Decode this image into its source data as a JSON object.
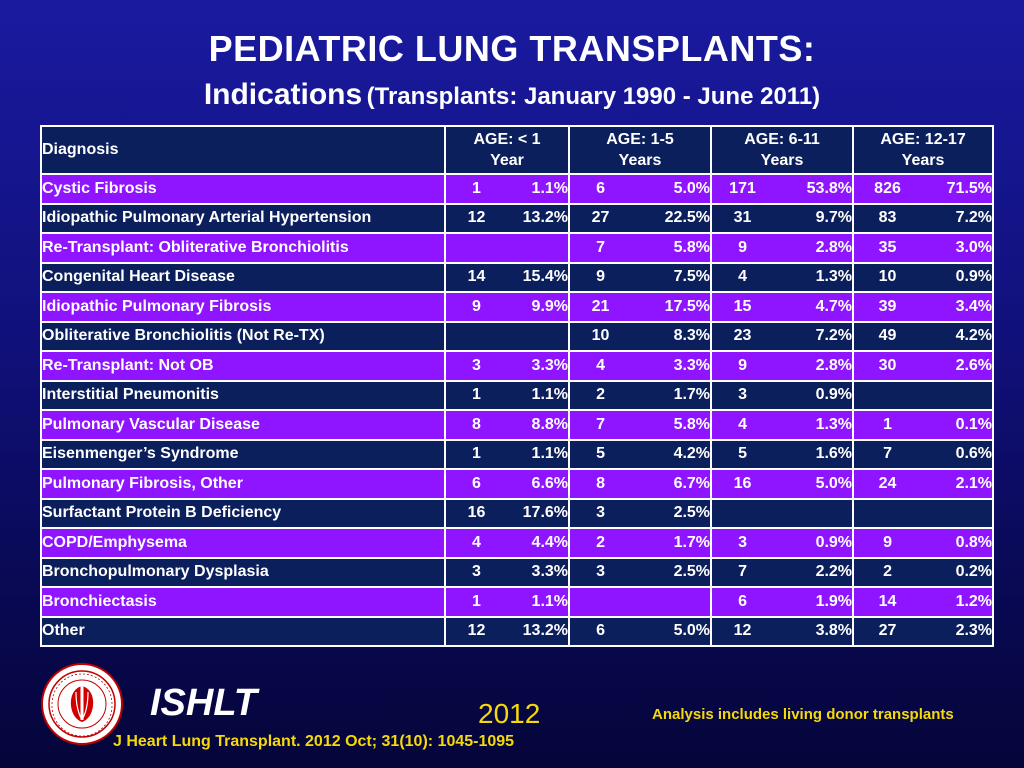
{
  "title": "PEDIATRIC LUNG TRANSPLANTS:",
  "subtitle": "Indications",
  "subtitle_paren": "(Transplants: January 1990 - June 2011)",
  "table": {
    "diagnosis_header": "Diagnosis",
    "age_headers": [
      {
        "line1": "AGE: < 1",
        "line2": "Year"
      },
      {
        "line1": "AGE: 1-5",
        "line2": "Years"
      },
      {
        "line1": "AGE: 6-11",
        "line2": "Years"
      },
      {
        "line1": "AGE: 12-17",
        "line2": "Years"
      }
    ],
    "rows": [
      {
        "diagnosis": "Cystic Fibrosis",
        "cells": [
          [
            "1",
            "1.1%"
          ],
          [
            "6",
            "5.0%"
          ],
          [
            "171",
            "53.8%"
          ],
          [
            "826",
            "71.5%"
          ]
        ]
      },
      {
        "diagnosis": "Idiopathic Pulmonary Arterial Hypertension",
        "cells": [
          [
            "12",
            "13.2%"
          ],
          [
            "27",
            "22.5%"
          ],
          [
            "31",
            "9.7%"
          ],
          [
            "83",
            "7.2%"
          ]
        ]
      },
      {
        "diagnosis": "Re-Transplant: Obliterative Bronchiolitis",
        "cells": [
          [
            "",
            ""
          ],
          [
            "7",
            "5.8%"
          ],
          [
            "9",
            "2.8%"
          ],
          [
            "35",
            "3.0%"
          ]
        ]
      },
      {
        "diagnosis": "Congenital Heart Disease",
        "cells": [
          [
            "14",
            "15.4%"
          ],
          [
            "9",
            "7.5%"
          ],
          [
            "4",
            "1.3%"
          ],
          [
            "10",
            "0.9%"
          ]
        ]
      },
      {
        "diagnosis": "Idiopathic Pulmonary Fibrosis",
        "cells": [
          [
            "9",
            "9.9%"
          ],
          [
            "21",
            "17.5%"
          ],
          [
            "15",
            "4.7%"
          ],
          [
            "39",
            "3.4%"
          ]
        ]
      },
      {
        "diagnosis": "Obliterative Bronchiolitis (Not Re-TX)",
        "cells": [
          [
            "",
            ""
          ],
          [
            "10",
            "8.3%"
          ],
          [
            "23",
            "7.2%"
          ],
          [
            "49",
            "4.2%"
          ]
        ]
      },
      {
        "diagnosis": "Re-Transplant: Not OB",
        "cells": [
          [
            "3",
            "3.3%"
          ],
          [
            "4",
            "3.3%"
          ],
          [
            "9",
            "2.8%"
          ],
          [
            "30",
            "2.6%"
          ]
        ]
      },
      {
        "diagnosis": "Interstitial Pneumonitis",
        "cells": [
          [
            "1",
            "1.1%"
          ],
          [
            "2",
            "1.7%"
          ],
          [
            "3",
            "0.9%"
          ],
          [
            "",
            ""
          ]
        ]
      },
      {
        "diagnosis": "Pulmonary Vascular Disease",
        "cells": [
          [
            "8",
            "8.8%"
          ],
          [
            "7",
            "5.8%"
          ],
          [
            "4",
            "1.3%"
          ],
          [
            "1",
            "0.1%"
          ]
        ]
      },
      {
        "diagnosis": "Eisenmenger’s Syndrome",
        "cells": [
          [
            "1",
            "1.1%"
          ],
          [
            "5",
            "4.2%"
          ],
          [
            "5",
            "1.6%"
          ],
          [
            "7",
            "0.6%"
          ]
        ]
      },
      {
        "diagnosis": "Pulmonary Fibrosis, Other",
        "cells": [
          [
            "6",
            "6.6%"
          ],
          [
            "8",
            "6.7%"
          ],
          [
            "16",
            "5.0%"
          ],
          [
            "24",
            "2.1%"
          ]
        ]
      },
      {
        "diagnosis": "Surfactant Protein B Deficiency",
        "cells": [
          [
            "16",
            "17.6%"
          ],
          [
            "3",
            "2.5%"
          ],
          [
            "",
            ""
          ],
          [
            "",
            ""
          ]
        ]
      },
      {
        "diagnosis": "COPD/Emphysema",
        "cells": [
          [
            "4",
            "4.4%"
          ],
          [
            "2",
            "1.7%"
          ],
          [
            "3",
            "0.9%"
          ],
          [
            "9",
            "0.8%"
          ]
        ]
      },
      {
        "diagnosis": "Bronchopulmonary Dysplasia",
        "cells": [
          [
            "3",
            "3.3%"
          ],
          [
            "3",
            "2.5%"
          ],
          [
            "7",
            "2.2%"
          ],
          [
            "2",
            "0.2%"
          ]
        ]
      },
      {
        "diagnosis": "Bronchiectasis",
        "cells": [
          [
            "1",
            "1.1%"
          ],
          [
            "",
            ""
          ],
          [
            "6",
            "1.9%"
          ],
          [
            "14",
            "1.2%"
          ]
        ]
      },
      {
        "diagnosis": "Other",
        "cells": [
          [
            "12",
            "13.2%"
          ],
          [
            "6",
            "5.0%"
          ],
          [
            "12",
            "3.8%"
          ],
          [
            "27",
            "2.3%"
          ]
        ]
      }
    ]
  },
  "footer": {
    "brand": "ISHLT",
    "year": "2012",
    "note": "Analysis includes living donor transplants",
    "citation": "J Heart Lung Transplant.  2012 Oct; 31(10): 1045-1095",
    "logo_ring_text": "INTERNATIONAL SOCIETY FOR HEART & LUNG TRANSPLANTATION"
  },
  "colors": {
    "row_purple": "#8f14ff",
    "row_navy": "#0b1f5c",
    "accent_yellow": "#f5d90a"
  }
}
